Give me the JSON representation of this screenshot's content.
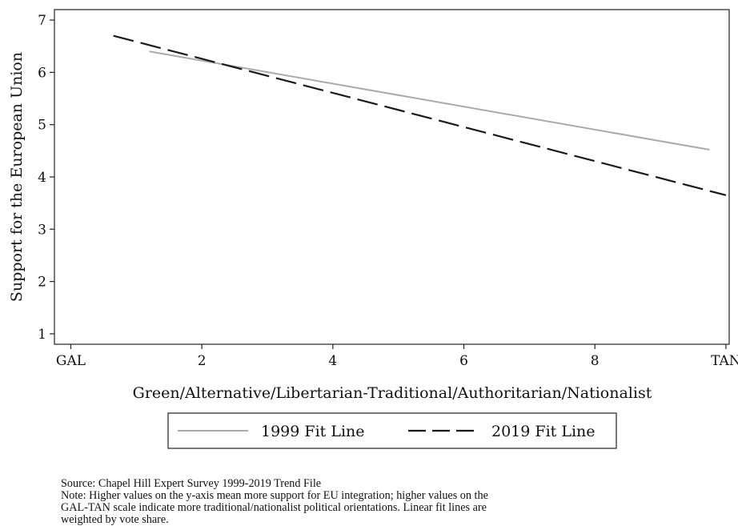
{
  "chart_data": {
    "type": "line",
    "ylabel": "Support for the European Union",
    "xlabel": "Green/Alternative/Libertarian-Traditional/Authoritarian/Nationalist",
    "xlim": [
      -0.25,
      10.05
    ],
    "ylim": [
      0.8,
      7.2
    ],
    "x_ticks": [
      {
        "value": 0,
        "label": "GAL"
      },
      {
        "value": 2,
        "label": "2"
      },
      {
        "value": 4,
        "label": "4"
      },
      {
        "value": 6,
        "label": "6"
      },
      {
        "value": 8,
        "label": "8"
      },
      {
        "value": 10,
        "label": "TAN"
      }
    ],
    "y_ticks": [
      1,
      2,
      3,
      4,
      5,
      6,
      7
    ],
    "grid": false,
    "legend": "bottom",
    "series": [
      {
        "name": "1999 Fit Line",
        "style": "solid",
        "color": "#aaaaaa",
        "x": [
          1.2,
          9.75
        ],
        "y": [
          6.4,
          4.52
        ]
      },
      {
        "name": "2019 Fit Line",
        "style": "dashed",
        "color": "#1a1a1a",
        "x": [
          0.65,
          10.0
        ],
        "y": [
          6.7,
          3.65
        ]
      }
    ]
  },
  "notes": {
    "source": "Source: Chapel Hill Expert Survey 1999-2019 Trend File",
    "note_lines": [
      "Note: Higher values on the y-axis mean more support for EU integration; higher values on the",
      "GAL-TAN scale indicate more traditional/nationalist political orientations. Linear fit lines are",
      "weighted by vote share."
    ]
  }
}
